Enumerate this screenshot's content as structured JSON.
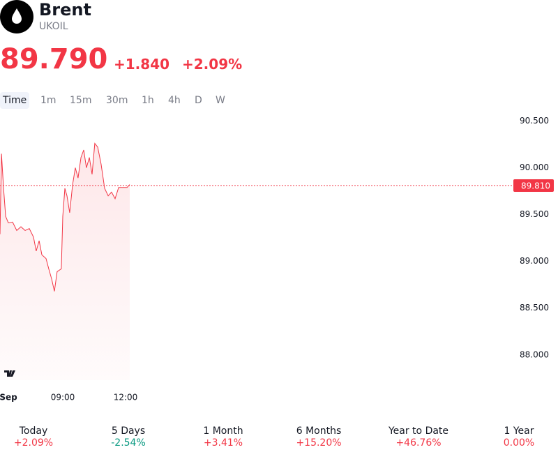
{
  "header": {
    "title": "Brent",
    "symbol": "UKOIL",
    "price": "89.790",
    "change": "+1.840",
    "change_percent": "+2.09%"
  },
  "intervals": [
    "Time",
    "1m",
    "15m",
    "30m",
    "1h",
    "4h",
    "D",
    "W"
  ],
  "chart_data": {
    "type": "line",
    "x": [
      6,
      6.07,
      6.17,
      6.27,
      6.4,
      6.6,
      6.8,
      7,
      7.2,
      7.4,
      7.6,
      7.73,
      7.87,
      8,
      8.2,
      8.33,
      8.47,
      8.6,
      8.73,
      8.93,
      9,
      9.1,
      9.2,
      9.33,
      9.47,
      9.6,
      9.73,
      9.87,
      10,
      10.13,
      10.27,
      10.4,
      10.53,
      10.67,
      10.83,
      11,
      11.17,
      11.33,
      11.5,
      11.67,
      11.87,
      12.07,
      12.2
    ],
    "series": [
      {
        "color": "#f23645",
        "values": [
          89.29,
          90.15,
          89.78,
          89.48,
          89.41,
          89.42,
          89.33,
          89.37,
          89.33,
          89.35,
          89.26,
          89.11,
          89.22,
          89.07,
          89.03,
          88.92,
          88.81,
          88.68,
          88.89,
          88.92,
          89.48,
          89.78,
          89.7,
          89.52,
          89.82,
          90.0,
          89.89,
          90.11,
          90.19,
          90.0,
          90.11,
          89.93,
          90.26,
          90.22,
          90.04,
          89.78,
          89.7,
          89.74,
          89.67,
          89.79,
          89.79,
          89.79,
          89.82
        ]
      }
    ],
    "last": {
      "value": 89.81,
      "label": "89.810"
    },
    "xlim": [
      6,
      30.5
    ],
    "xticks": [
      {
        "value": 6.4,
        "label": "Sep"
      },
      {
        "value": 9,
        "label": "09:00"
      },
      {
        "value": 12,
        "label": "12:00"
      }
    ],
    "ylim": [
      87.73,
      90.6
    ],
    "yticks": [
      {
        "value": 88,
        "label": "88.000"
      },
      {
        "value": 88.5,
        "label": "88.500"
      },
      {
        "value": 89,
        "label": "89.000"
      },
      {
        "value": 89.5,
        "label": "89.500"
      },
      {
        "value": 90,
        "label": "90.000"
      },
      {
        "value": 90.5,
        "label": "90.500"
      }
    ]
  },
  "performance": [
    {
      "label": "Today",
      "value": "+2.09%",
      "color": "#f23645"
    },
    {
      "label": "5 Days",
      "value": "-2.54%",
      "color": "#089981"
    },
    {
      "label": "1 Month",
      "value": "+3.41%",
      "color": "#f23645"
    },
    {
      "label": "6 Months",
      "value": "+15.20%",
      "color": "#f23645"
    },
    {
      "label": "Year to Date",
      "value": "+46.76%",
      "color": "#f23645"
    },
    {
      "label": "1 Year",
      "value": "0.00%",
      "color": "#f23645"
    }
  ]
}
